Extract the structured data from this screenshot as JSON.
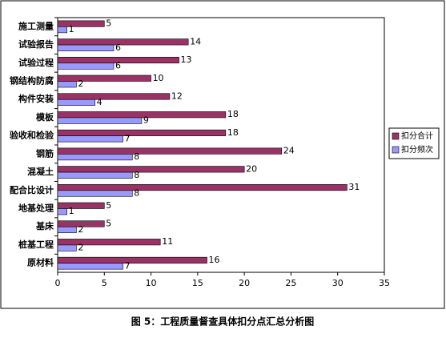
{
  "chart_data": {
    "type": "hbar",
    "title": "图 5：工程质量督查具体扣分点汇总分析图",
    "categories": [
      "施工测量",
      "试验报告",
      "试验过程",
      "钢结构防腐",
      "构件安装",
      "模板",
      "验收和检验",
      "钢筋",
      "混凝土",
      "配合比设计",
      "地基处理",
      "基床",
      "桩基工程",
      "原材料"
    ],
    "series": [
      {
        "name": "扣分合计",
        "color": "#993366",
        "values": [
          5,
          14,
          13,
          10,
          12,
          18,
          18,
          24,
          20,
          31,
          5,
          5,
          11,
          16
        ]
      },
      {
        "name": "扣分频次",
        "color": "#9999ff",
        "values": [
          1,
          6,
          6,
          2,
          4,
          9,
          7,
          8,
          8,
          8,
          1,
          2,
          2,
          7
        ]
      }
    ],
    "xlim": [
      0,
      35
    ],
    "xticks": [
      0,
      5,
      10,
      15,
      20,
      25,
      30,
      35
    ],
    "legend": "right"
  }
}
